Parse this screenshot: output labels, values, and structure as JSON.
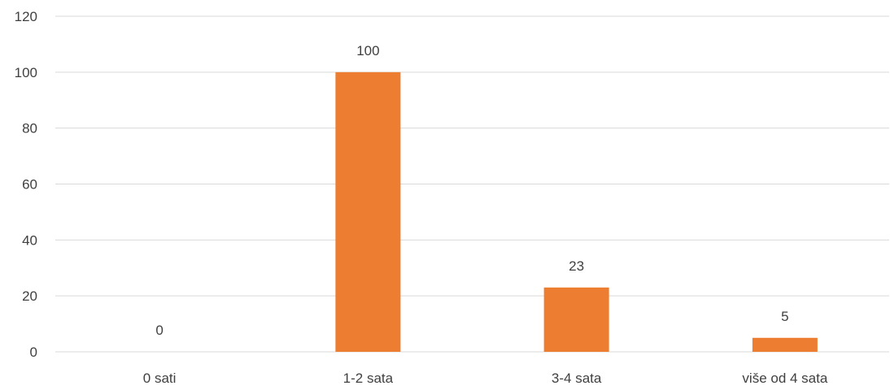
{
  "chart_data": {
    "type": "bar",
    "categories": [
      "0 sati",
      "1-2 sata",
      "3-4 sata",
      "više od 4 sata"
    ],
    "values": [
      0,
      100,
      23,
      5
    ],
    "data_labels": [
      "0",
      "100",
      "23",
      "5"
    ],
    "title": "",
    "xlabel": "",
    "ylabel": "",
    "ylim": [
      0,
      120
    ],
    "y_ticks": [
      "0",
      "20",
      "40",
      "60",
      "80",
      "100",
      "120"
    ],
    "grid": true,
    "legend": "none",
    "colors": {
      "bar": "#ED7D31",
      "grid": "#D9D9D9",
      "text": "#404040"
    }
  }
}
